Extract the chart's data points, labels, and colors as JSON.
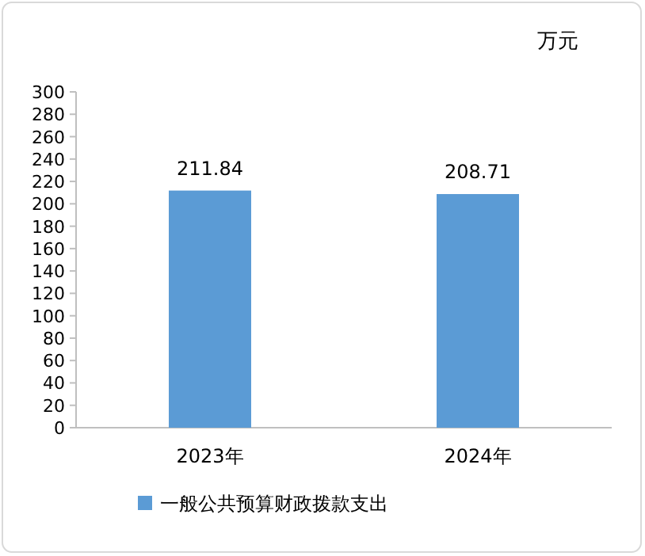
{
  "chart_data": {
    "type": "bar",
    "ylabel": "万元",
    "categories": [
      "2023年",
      "2024年"
    ],
    "series": [
      {
        "name": "一般公共预算财政拨款支出",
        "color": "#5b9bd5",
        "values": [
          211.84,
          208.71
        ]
      }
    ],
    "ylim": [
      0,
      300
    ],
    "yticks": [
      0,
      20,
      40,
      60,
      80,
      100,
      120,
      140,
      160,
      180,
      200,
      220,
      240,
      260,
      280,
      300
    ],
    "data_labels": true,
    "grid": false,
    "legend": "bottom"
  }
}
